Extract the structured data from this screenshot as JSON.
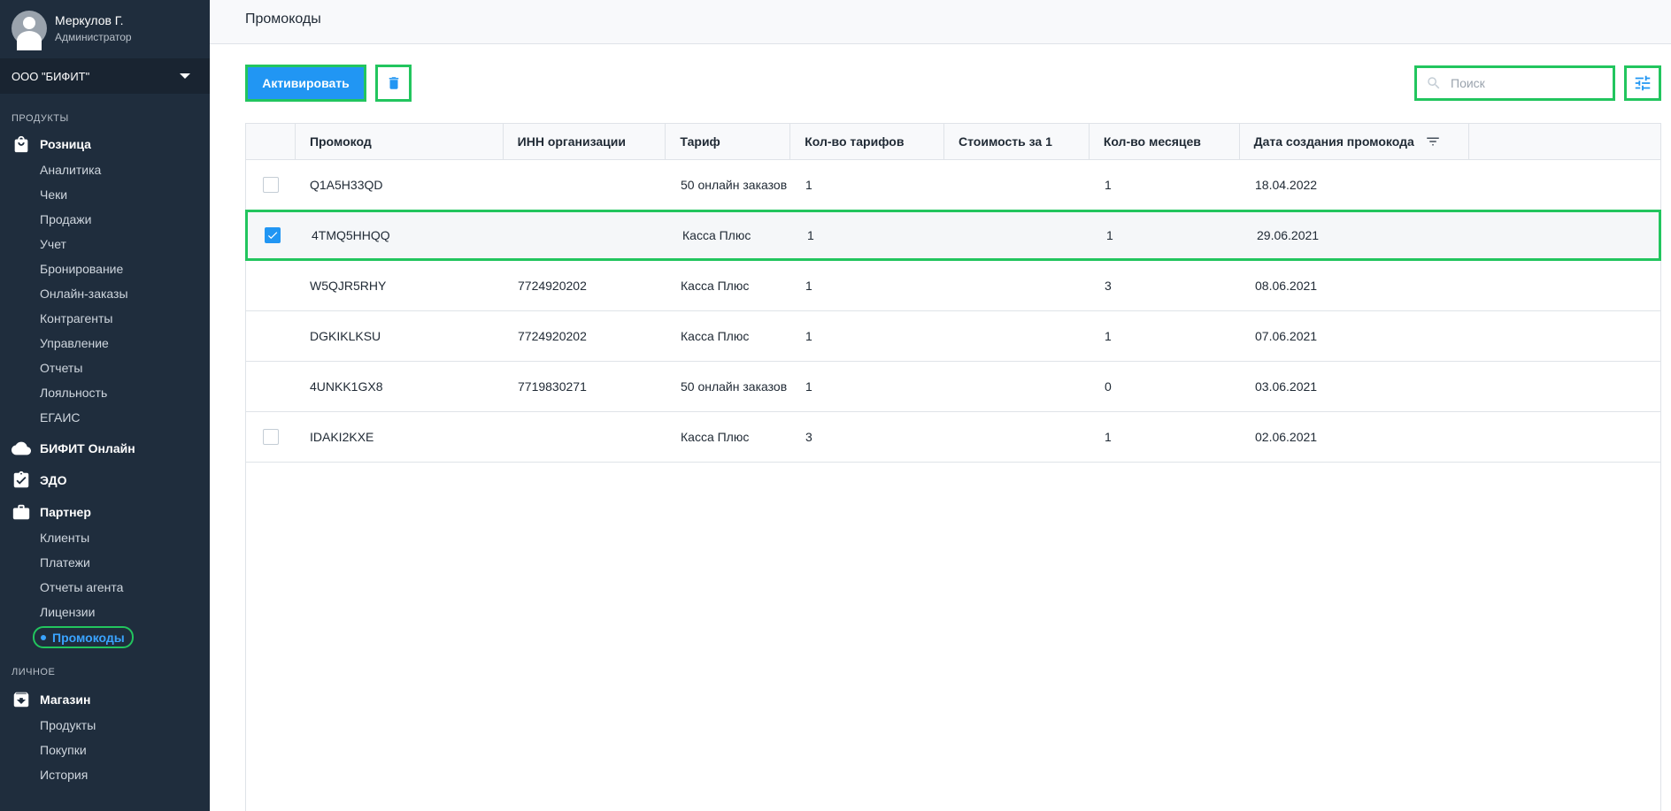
{
  "user": {
    "name": "Меркулов Г.",
    "role": "Администратор"
  },
  "org": {
    "name": "ООО \"БИФИТ\""
  },
  "sidebar": {
    "section_products": "ПРОДУКТЫ",
    "section_personal": "ЛИЧНОЕ",
    "retail": {
      "label": "Розница",
      "items": [
        "Аналитика",
        "Чеки",
        "Продажи",
        "Учет",
        "Бронирование",
        "Онлайн-заказы",
        "Контрагенты",
        "Управление",
        "Отчеты",
        "Лояльность",
        "ЕГАИС"
      ]
    },
    "bifit_online": {
      "label": "БИФИТ Онлайн"
    },
    "edo": {
      "label": "ЭДО"
    },
    "partner": {
      "label": "Партнер",
      "items": [
        "Клиенты",
        "Платежи",
        "Отчеты агента",
        "Лицензии"
      ],
      "active_item": "Промокоды"
    },
    "shop": {
      "label": "Магазин",
      "items": [
        "Продукты",
        "Покупки",
        "История"
      ]
    }
  },
  "page": {
    "title": "Промокоды"
  },
  "toolbar": {
    "activate_label": "Активировать",
    "search_placeholder": "Поиск",
    "search_value": ""
  },
  "table": {
    "headers": [
      "Промокод",
      "ИНН организации",
      "Тариф",
      "Кол-во тарифов",
      "Стоимость за 1",
      "Кол-во месяцев",
      "Дата создания промокода"
    ],
    "rows": [
      {
        "checkbox": "unchecked",
        "code": "Q1A5H33QD",
        "inn": "",
        "tariff": "50 онлайн заказов",
        "tariffs_count": "1",
        "price": "",
        "months": "1",
        "date": "18.04.2022"
      },
      {
        "checkbox": "checked",
        "code": "4TMQ5HHQQ",
        "inn": "",
        "tariff": "Касса Плюс",
        "tariffs_count": "1",
        "price": "",
        "months": "1",
        "date": "29.06.2021"
      },
      {
        "checkbox": "none",
        "code": "W5QJR5RHY",
        "inn": "7724920202",
        "tariff": "Касса Плюс",
        "tariffs_count": "1",
        "price": "",
        "months": "3",
        "date": "08.06.2021"
      },
      {
        "checkbox": "none",
        "code": "DGKIKLKSU",
        "inn": "7724920202",
        "tariff": "Касса Плюс",
        "tariffs_count": "1",
        "price": "",
        "months": "1",
        "date": "07.06.2021"
      },
      {
        "checkbox": "none",
        "code": "4UNKK1GX8",
        "inn": "7719830271",
        "tariff": "50 онлайн заказов",
        "tariffs_count": "1",
        "price": "",
        "months": "0",
        "date": "03.06.2021"
      },
      {
        "checkbox": "unchecked",
        "code": "IDAKI2KXE",
        "inn": "",
        "tariff": "Касса Плюс",
        "tariffs_count": "3",
        "price": "",
        "months": "1",
        "date": "02.06.2021"
      }
    ]
  },
  "icons": {
    "avatar": "user-avatar-icon",
    "org_dropdown": "caret-down-icon",
    "retail": "shopping-bag-icon",
    "bifit_online": "cloud-icon",
    "edo": "clipboard-check-icon",
    "partner": "briefcase-icon",
    "shop": "archive-box-icon",
    "delete": "trash-icon",
    "search": "search-icon",
    "filter": "sliders-icon",
    "sort": "sort-lines-icon"
  },
  "colors": {
    "sidebar_bg": "#1f2d3d",
    "accent": "#2196f3",
    "highlight": "#22c55e",
    "active_link": "#3aa3ff"
  }
}
